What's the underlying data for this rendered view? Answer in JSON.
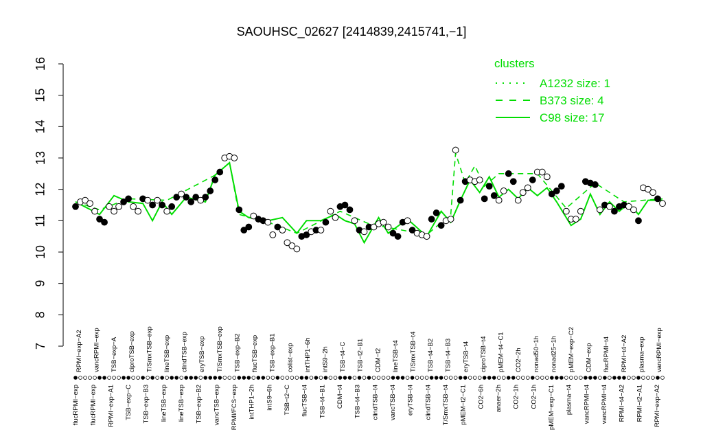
{
  "chart_data": {
    "type": "line",
    "title": "SAOUHSC_02627 [2414839,2415741,−1]",
    "ylim": [
      7,
      16
    ],
    "yticks": [
      7,
      8,
      9,
      10,
      11,
      12,
      13,
      14,
      15,
      16
    ],
    "xlabels_top": [
      "RPMI−exp−A2",
      "vancRPMI−exp",
      "TSB−exp−A",
      "ciproTSB−exp",
      "T/SmxTSB−exp",
      "lineTSB−exp",
      "clindTSB−exp",
      "eryTSB−exp",
      "T/SmxTSB−exp",
      "TSB−exp−B2",
      "flucTSB−exp",
      "TSB−exp−B1",
      "colist−exp",
      "intTHP1−6h",
      "intS9−2h",
      "TSB−t4−C",
      "TSB−t2−B1",
      "CDM−t2",
      "lineTSB−t4",
      "T/SmxTSB−t4",
      "TSB−t4−B2",
      "TSB−t4−B3",
      "eryTSB−t4",
      "ciproTSB−t4",
      "pMEM−t4−C1",
      "CO2−2h",
      "nonad50−1h",
      "nonad25−1h",
      "pMEM−exp−C2",
      "CDM−exp",
      "flucRPMI−t4",
      "RPMI−t4−A2",
      "plasma−exp",
      "vancRPMI−exp"
    ],
    "xlabels_bottom": [
      "flucRPMI−exp",
      "flucRPMI−exp",
      "RPMI−exp−A1",
      "TSB−exp−C",
      "TSB−exp−B3",
      "lineTSB−exp",
      "lineTSB−exp",
      "TSB−exp−B2",
      "vancTSB−exp",
      "RPMI/FCS−exp",
      "intTHP1−2h",
      "intS9−6h",
      "TSB−t2−C",
      "flucTSB−t4",
      "TSB−t4−B1",
      "CDM−t4",
      "TSB−t4−B3",
      "clindTSB−t4",
      "vancTSB−t4",
      "eryTSB−t4",
      "clindTSB−t4",
      "T/SmxTSB−t4",
      "pMEM−t2−C1",
      "CO2−6h",
      "anaer−2h",
      "CO2−1h",
      "CO2−1h",
      "pMEM−exp−C1",
      "plasma−t4",
      "vancRPMI−t4",
      "vancRPMI−t4",
      "RPMI−t4−A2",
      "RPMI−t2−A1",
      "RPMI−exp−A2"
    ],
    "legend": {
      "title": "clusters",
      "position": "top-right",
      "entries": [
        {
          "label": "A1232 size: 1",
          "style": "dotted"
        },
        {
          "label": "B373 size: 4",
          "style": "dashed"
        },
        {
          "label": "C98 size: 17",
          "style": "solid"
        }
      ]
    },
    "line_color": "#00dd00",
    "points": [
      {
        "x": 1,
        "y": 11.45,
        "f": 1
      },
      {
        "x": 2,
        "y": 11.6,
        "f": 0
      },
      {
        "x": 3,
        "y": 11.65,
        "f": 0
      },
      {
        "x": 4,
        "y": 11.55,
        "f": 0
      },
      {
        "x": 5,
        "y": 11.3,
        "f": 0
      },
      {
        "x": 6,
        "y": 11.05,
        "f": 1
      },
      {
        "x": 7,
        "y": 10.95,
        "f": 1
      },
      {
        "x": 8,
        "y": 11.45,
        "f": 0
      },
      {
        "x": 9,
        "y": 11.3,
        "f": 0
      },
      {
        "x": 10,
        "y": 11.45,
        "f": 0
      },
      {
        "x": 11,
        "y": 11.6,
        "f": 1
      },
      {
        "x": 12,
        "y": 11.7,
        "f": 1
      },
      {
        "x": 13,
        "y": 11.45,
        "f": 0
      },
      {
        "x": 14,
        "y": 11.3,
        "f": 0
      },
      {
        "x": 15,
        "y": 11.7,
        "f": 1
      },
      {
        "x": 16,
        "y": 11.65,
        "f": 0
      },
      {
        "x": 17,
        "y": 11.5,
        "f": 1
      },
      {
        "x": 18,
        "y": 11.65,
        "f": 0
      },
      {
        "x": 19,
        "y": 11.5,
        "f": 1
      },
      {
        "x": 20,
        "y": 11.3,
        "f": 0
      },
      {
        "x": 21,
        "y": 11.45,
        "f": 1
      },
      {
        "x": 22,
        "y": 11.75,
        "f": 1
      },
      {
        "x": 23,
        "y": 11.85,
        "f": 0
      },
      {
        "x": 24,
        "y": 11.75,
        "f": 1
      },
      {
        "x": 25,
        "y": 11.6,
        "f": 1
      },
      {
        "x": 26,
        "y": 11.75,
        "f": 1
      },
      {
        "x": 27,
        "y": 11.65,
        "f": 0
      },
      {
        "x": 28,
        "y": 11.75,
        "f": 1
      },
      {
        "x": 29,
        "y": 11.95,
        "f": 1
      },
      {
        "x": 30,
        "y": 12.3,
        "f": 1
      },
      {
        "x": 31,
        "y": 12.55,
        "f": 1
      },
      {
        "x": 32,
        "y": 13.0,
        "f": 0
      },
      {
        "x": 33,
        "y": 13.05,
        "f": 0
      },
      {
        "x": 34,
        "y": 13.0,
        "f": 0
      },
      {
        "x": 35,
        "y": 11.35,
        "f": 1
      },
      {
        "x": 36,
        "y": 10.7,
        "f": 1
      },
      {
        "x": 37,
        "y": 10.8,
        "f": 1
      },
      {
        "x": 38,
        "y": 11.15,
        "f": 0
      },
      {
        "x": 39,
        "y": 11.05,
        "f": 1
      },
      {
        "x": 40,
        "y": 11.0,
        "f": 1
      },
      {
        "x": 41,
        "y": 10.95,
        "f": 0
      },
      {
        "x": 42,
        "y": 10.55,
        "f": 0
      },
      {
        "x": 43,
        "y": 10.8,
        "f": 1
      },
      {
        "x": 44,
        "y": 10.7,
        "f": 0
      },
      {
        "x": 45,
        "y": 10.3,
        "f": 0
      },
      {
        "x": 46,
        "y": 10.2,
        "f": 0
      },
      {
        "x": 47,
        "y": 10.1,
        "f": 0
      },
      {
        "x": 48,
        "y": 10.5,
        "f": 1
      },
      {
        "x": 49,
        "y": 10.55,
        "f": 1
      },
      {
        "x": 50,
        "y": 10.65,
        "f": 0
      },
      {
        "x": 51,
        "y": 10.7,
        "f": 1
      },
      {
        "x": 52,
        "y": 10.7,
        "f": 0
      },
      {
        "x": 53,
        "y": 10.95,
        "f": 1
      },
      {
        "x": 54,
        "y": 11.3,
        "f": 0
      },
      {
        "x": 55,
        "y": 11.1,
        "f": 0
      },
      {
        "x": 56,
        "y": 11.45,
        "f": 1
      },
      {
        "x": 57,
        "y": 11.5,
        "f": 1
      },
      {
        "x": 58,
        "y": 11.35,
        "f": 1
      },
      {
        "x": 59,
        "y": 11.0,
        "f": 0
      },
      {
        "x": 60,
        "y": 10.7,
        "f": 1
      },
      {
        "x": 61,
        "y": 10.65,
        "f": 0
      },
      {
        "x": 62,
        "y": 10.8,
        "f": 1
      },
      {
        "x": 63,
        "y": 10.8,
        "f": 0
      },
      {
        "x": 64,
        "y": 10.9,
        "f": 0
      },
      {
        "x": 65,
        "y": 10.95,
        "f": 0
      },
      {
        "x": 66,
        "y": 10.8,
        "f": 0
      },
      {
        "x": 67,
        "y": 10.6,
        "f": 1
      },
      {
        "x": 68,
        "y": 10.5,
        "f": 1
      },
      {
        "x": 69,
        "y": 10.95,
        "f": 1
      },
      {
        "x": 70,
        "y": 11.0,
        "f": 0
      },
      {
        "x": 71,
        "y": 10.7,
        "f": 1
      },
      {
        "x": 72,
        "y": 10.6,
        "f": 0
      },
      {
        "x": 73,
        "y": 10.55,
        "f": 0
      },
      {
        "x": 74,
        "y": 10.5,
        "f": 0
      },
      {
        "x": 75,
        "y": 11.05,
        "f": 1
      },
      {
        "x": 76,
        "y": 11.25,
        "f": 1
      },
      {
        "x": 77,
        "y": 10.85,
        "f": 1
      },
      {
        "x": 78,
        "y": 11.0,
        "f": 0
      },
      {
        "x": 79,
        "y": 11.05,
        "f": 0
      },
      {
        "x": 80,
        "y": 13.25,
        "f": 0
      },
      {
        "x": 81,
        "y": 11.65,
        "f": 1
      },
      {
        "x": 82,
        "y": 12.25,
        "f": 1
      },
      {
        "x": 83,
        "y": 12.3,
        "f": 0
      },
      {
        "x": 84,
        "y": 12.25,
        "f": 0
      },
      {
        "x": 85,
        "y": 12.3,
        "f": 0
      },
      {
        "x": 86,
        "y": 11.7,
        "f": 1
      },
      {
        "x": 87,
        "y": 12.1,
        "f": 1
      },
      {
        "x": 88,
        "y": 11.8,
        "f": 1
      },
      {
        "x": 89,
        "y": 11.65,
        "f": 0
      },
      {
        "x": 90,
        "y": 11.95,
        "f": 0
      },
      {
        "x": 91,
        "y": 12.5,
        "f": 1
      },
      {
        "x": 92,
        "y": 12.25,
        "f": 1
      },
      {
        "x": 93,
        "y": 11.65,
        "f": 0
      },
      {
        "x": 94,
        "y": 11.9,
        "f": 0
      },
      {
        "x": 95,
        "y": 12.05,
        "f": 0
      },
      {
        "x": 96,
        "y": 12.3,
        "f": 1
      },
      {
        "x": 97,
        "y": 12.55,
        "f": 0
      },
      {
        "x": 98,
        "y": 12.55,
        "f": 0
      },
      {
        "x": 99,
        "y": 12.4,
        "f": 0
      },
      {
        "x": 100,
        "y": 11.85,
        "f": 1
      },
      {
        "x": 101,
        "y": 11.95,
        "f": 1
      },
      {
        "x": 102,
        "y": 12.1,
        "f": 1
      },
      {
        "x": 103,
        "y": 11.3,
        "f": 0
      },
      {
        "x": 104,
        "y": 11.05,
        "f": 0
      },
      {
        "x": 105,
        "y": 11.05,
        "f": 0
      },
      {
        "x": 106,
        "y": 11.3,
        "f": 0
      },
      {
        "x": 107,
        "y": 12.25,
        "f": 1
      },
      {
        "x": 108,
        "y": 12.2,
        "f": 1
      },
      {
        "x": 109,
        "y": 12.15,
        "f": 1
      },
      {
        "x": 110,
        "y": 11.35,
        "f": 0
      },
      {
        "x": 111,
        "y": 11.5,
        "f": 1
      },
      {
        "x": 112,
        "y": 11.45,
        "f": 0
      },
      {
        "x": 113,
        "y": 11.3,
        "f": 1
      },
      {
        "x": 114,
        "y": 11.45,
        "f": 1
      },
      {
        "x": 115,
        "y": 11.5,
        "f": 1
      },
      {
        "x": 116,
        "y": 11.45,
        "f": 0
      },
      {
        "x": 117,
        "y": 11.35,
        "f": 0
      },
      {
        "x": 118,
        "y": 11.0,
        "f": 1
      },
      {
        "x": 119,
        "y": 12.05,
        "f": 0
      },
      {
        "x": 120,
        "y": 12.0,
        "f": 0
      },
      {
        "x": 121,
        "y": 11.9,
        "f": 0
      },
      {
        "x": 122,
        "y": 11.7,
        "f": 1
      },
      {
        "x": 123,
        "y": 11.55,
        "f": 0
      }
    ],
    "cluster_line_B373": [
      {
        "x": 1,
        "y": 11.6
      },
      {
        "x": 6,
        "y": 11.35
      },
      {
        "x": 12,
        "y": 11.7
      },
      {
        "x": 20,
        "y": 11.65
      },
      {
        "x": 30,
        "y": 12.45
      },
      {
        "x": 33,
        "y": 12.85
      },
      {
        "x": 35,
        "y": 11.2
      },
      {
        "x": 42,
        "y": 10.9
      },
      {
        "x": 47,
        "y": 10.6
      },
      {
        "x": 56,
        "y": 11.3
      },
      {
        "x": 62,
        "y": 10.9
      },
      {
        "x": 74,
        "y": 10.55
      },
      {
        "x": 79,
        "y": 11.2
      },
      {
        "x": 80,
        "y": 13.15
      },
      {
        "x": 82,
        "y": 12.2
      },
      {
        "x": 84,
        "y": 12.75
      },
      {
        "x": 86,
        "y": 12.1
      },
      {
        "x": 89,
        "y": 12.5
      },
      {
        "x": 97,
        "y": 12.5
      },
      {
        "x": 103,
        "y": 11.4
      },
      {
        "x": 109,
        "y": 12.2
      },
      {
        "x": 115,
        "y": 11.6
      },
      {
        "x": 123,
        "y": 11.7
      }
    ],
    "cluster_line_C98": [
      {
        "x": 1,
        "y": 11.6
      },
      {
        "x": 6,
        "y": 11.2
      },
      {
        "x": 9,
        "y": 11.8
      },
      {
        "x": 12,
        "y": 11.6
      },
      {
        "x": 15,
        "y": 11.55
      },
      {
        "x": 17,
        "y": 11.0
      },
      {
        "x": 19,
        "y": 11.6
      },
      {
        "x": 21,
        "y": 11.2
      },
      {
        "x": 24,
        "y": 11.75
      },
      {
        "x": 28,
        "y": 11.6
      },
      {
        "x": 30,
        "y": 12.45
      },
      {
        "x": 33,
        "y": 12.85
      },
      {
        "x": 35,
        "y": 11.3
      },
      {
        "x": 37,
        "y": 11.1
      },
      {
        "x": 41,
        "y": 11.0
      },
      {
        "x": 44,
        "y": 11.1
      },
      {
        "x": 47,
        "y": 10.6
      },
      {
        "x": 49,
        "y": 11.0
      },
      {
        "x": 52,
        "y": 11.0
      },
      {
        "x": 55,
        "y": 11.2
      },
      {
        "x": 57,
        "y": 11.0
      },
      {
        "x": 59,
        "y": 10.9
      },
      {
        "x": 61,
        "y": 10.3
      },
      {
        "x": 64,
        "y": 11.1
      },
      {
        "x": 66,
        "y": 10.6
      },
      {
        "x": 70,
        "y": 11.05
      },
      {
        "x": 74,
        "y": 10.5
      },
      {
        "x": 77,
        "y": 11.3
      },
      {
        "x": 79,
        "y": 10.95
      },
      {
        "x": 81,
        "y": 11.65
      },
      {
        "x": 83,
        "y": 12.3
      },
      {
        "x": 85,
        "y": 11.9
      },
      {
        "x": 87,
        "y": 12.4
      },
      {
        "x": 89,
        "y": 11.75
      },
      {
        "x": 91,
        "y": 12.0
      },
      {
        "x": 93,
        "y": 11.7
      },
      {
        "x": 95,
        "y": 12.05
      },
      {
        "x": 97,
        "y": 11.8
      },
      {
        "x": 99,
        "y": 12.05
      },
      {
        "x": 101,
        "y": 11.6
      },
      {
        "x": 104,
        "y": 10.85
      },
      {
        "x": 106,
        "y": 11.05
      },
      {
        "x": 108,
        "y": 11.85
      },
      {
        "x": 110,
        "y": 11.2
      },
      {
        "x": 112,
        "y": 11.6
      },
      {
        "x": 114,
        "y": 11.3
      },
      {
        "x": 116,
        "y": 11.55
      },
      {
        "x": 118,
        "y": 11.2
      },
      {
        "x": 120,
        "y": 11.65
      },
      {
        "x": 123,
        "y": 11.65
      }
    ]
  }
}
